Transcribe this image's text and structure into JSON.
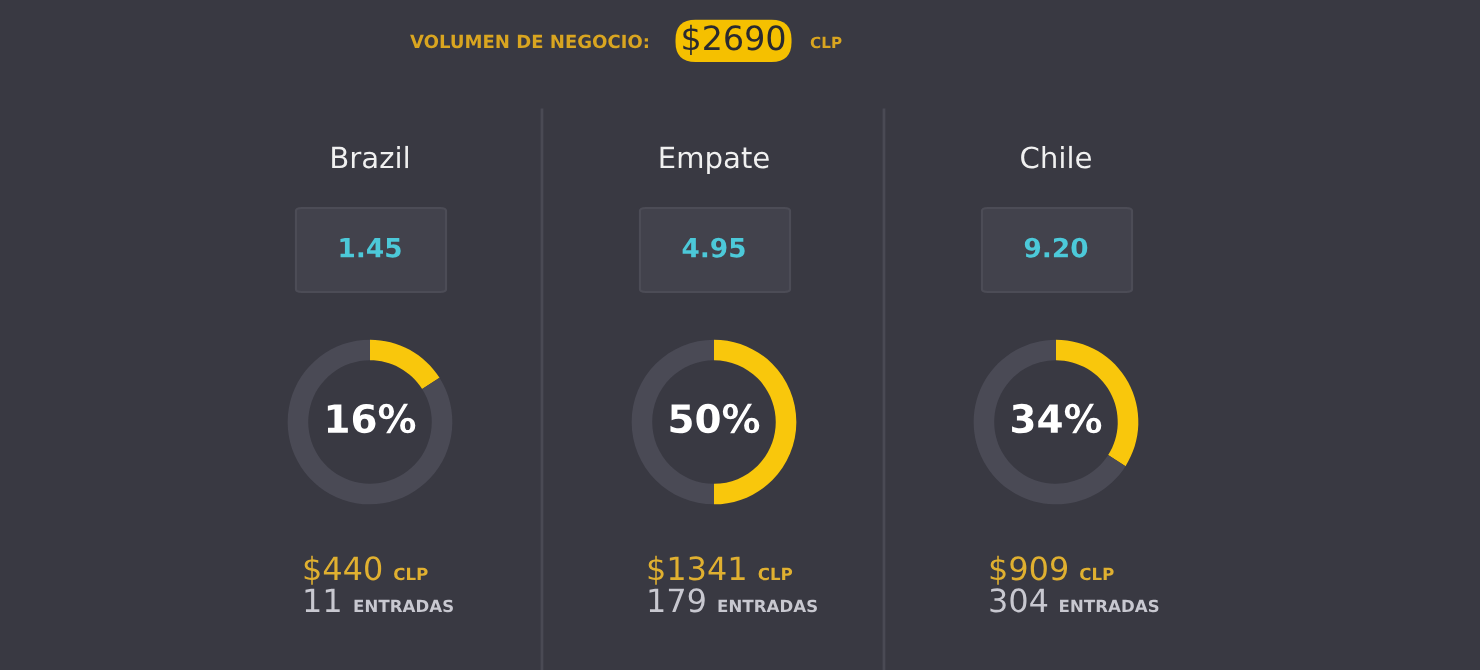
{
  "chart_data": [
    {
      "type": "other",
      "title": "VOLUMEN DE NEGOCIO:",
      "annotations": [
        "$2690",
        "CLP"
      ]
    },
    {
      "type": "donut",
      "title": "Brazil",
      "categories": [
        null,
        null
      ],
      "values": [
        16,
        84
      ],
      "colors": [
        "#f9c70c",
        "#4a4a55"
      ],
      "value_labels": [
        "16%",
        null
      ],
      "annotations": [
        "1.45",
        "$440",
        "CLP",
        "11",
        "ENTRADAS"
      ]
    },
    {
      "type": "donut",
      "title": "Empate",
      "categories": [
        null,
        null
      ],
      "values": [
        50,
        50
      ],
      "colors": [
        "#f9c70c",
        "#4a4a55"
      ],
      "value_labels": [
        "50%",
        null
      ],
      "annotations": [
        "4.95",
        "$1341",
        "CLP",
        "179",
        "ENTRADAS"
      ]
    },
    {
      "type": "donut",
      "title": "Chile",
      "categories": [
        null,
        null
      ],
      "values": [
        34,
        66
      ],
      "colors": [
        "#f9c70c",
        "#4a4a55"
      ],
      "value_labels": [
        "34%",
        null
      ],
      "annotations": [
        "9.20",
        "$909",
        "CLP",
        "304",
        "ENTRADAS"
      ]
    }
  ]
}
